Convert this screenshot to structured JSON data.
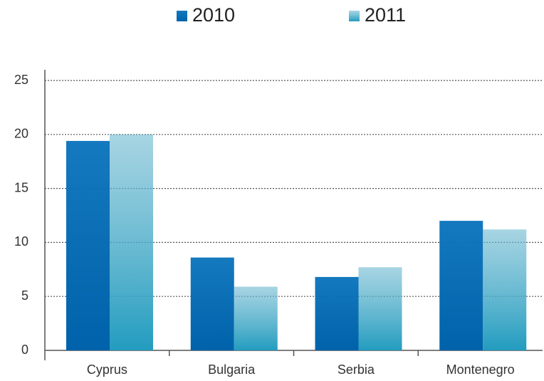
{
  "chart_data": {
    "type": "bar",
    "categories": [
      "Cyprus",
      "Bulgaria",
      "Serbia",
      "Montenegro"
    ],
    "series": [
      {
        "name": "2010",
        "color": "#0872bb",
        "values": [
          19.4,
          8.6,
          6.8,
          12.0
        ]
      },
      {
        "name": "2011",
        "color": "#6cb8d0",
        "values": [
          20.0,
          5.9,
          7.7,
          11.2
        ]
      }
    ],
    "ylim": [
      0,
      25
    ],
    "yticks": [
      0,
      5,
      10,
      15,
      20,
      25
    ],
    "grid": true,
    "legend": "top"
  }
}
